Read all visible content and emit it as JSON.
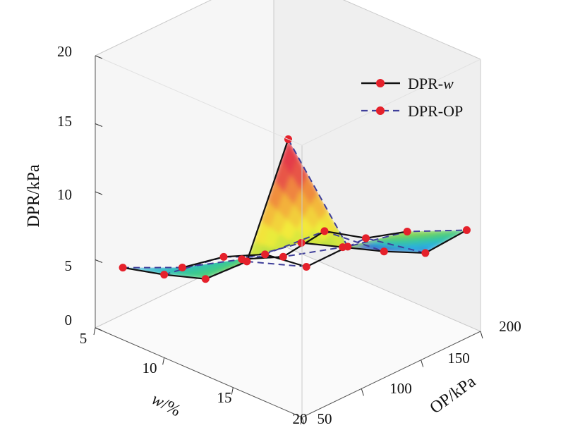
{
  "chart_data": {
    "type": "surface3d",
    "title": "",
    "xlabel_prefix": "w",
    "xlabel_suffix": "/%",
    "ylabel": "OP/kPa",
    "zlabel": "DPR/kPa",
    "x_ticks": [
      "5",
      "10",
      "15",
      "20"
    ],
    "y_ticks": [
      "50",
      "100",
      "150",
      "200"
    ],
    "z_ticks": [
      "0",
      "5",
      "10",
      "15",
      "20"
    ],
    "xlim": [
      5,
      20
    ],
    "ylim": [
      50,
      200
    ],
    "zlim": [
      0,
      20
    ],
    "w": [
      7,
      10,
      13,
      16,
      19
    ],
    "OP": [
      50,
      100,
      150,
      200
    ],
    "DPR": [
      [
        5.3,
        3.2,
        1.7,
        0.8
      ],
      [
        6.1,
        5.3,
        3.2,
        1.8
      ],
      [
        7.1,
        6.8,
        6.4,
        2.8
      ],
      [
        9.7,
        7.2,
        7.2,
        4.0
      ],
      [
        20.0,
        10.0,
        9.0,
        7.0
      ]
    ],
    "legend": {
      "position": "top-right",
      "entries": [
        {
          "label_prefix": "DPR-",
          "label_italic": "w",
          "style": "solid",
          "color": "#111111",
          "marker_color": "#e5212b"
        },
        {
          "label_prefix": "DPR-OP",
          "label_italic": "",
          "style": "dashed",
          "color": "#3f3f9a",
          "marker_color": "#e5212b"
        }
      ]
    },
    "colormap": [
      "#7b3fa2",
      "#3f49b5",
      "#2aaee6",
      "#3ccc8a",
      "#8cd24a",
      "#f2ee3a",
      "#f3a43a",
      "#e43d4a"
    ]
  }
}
